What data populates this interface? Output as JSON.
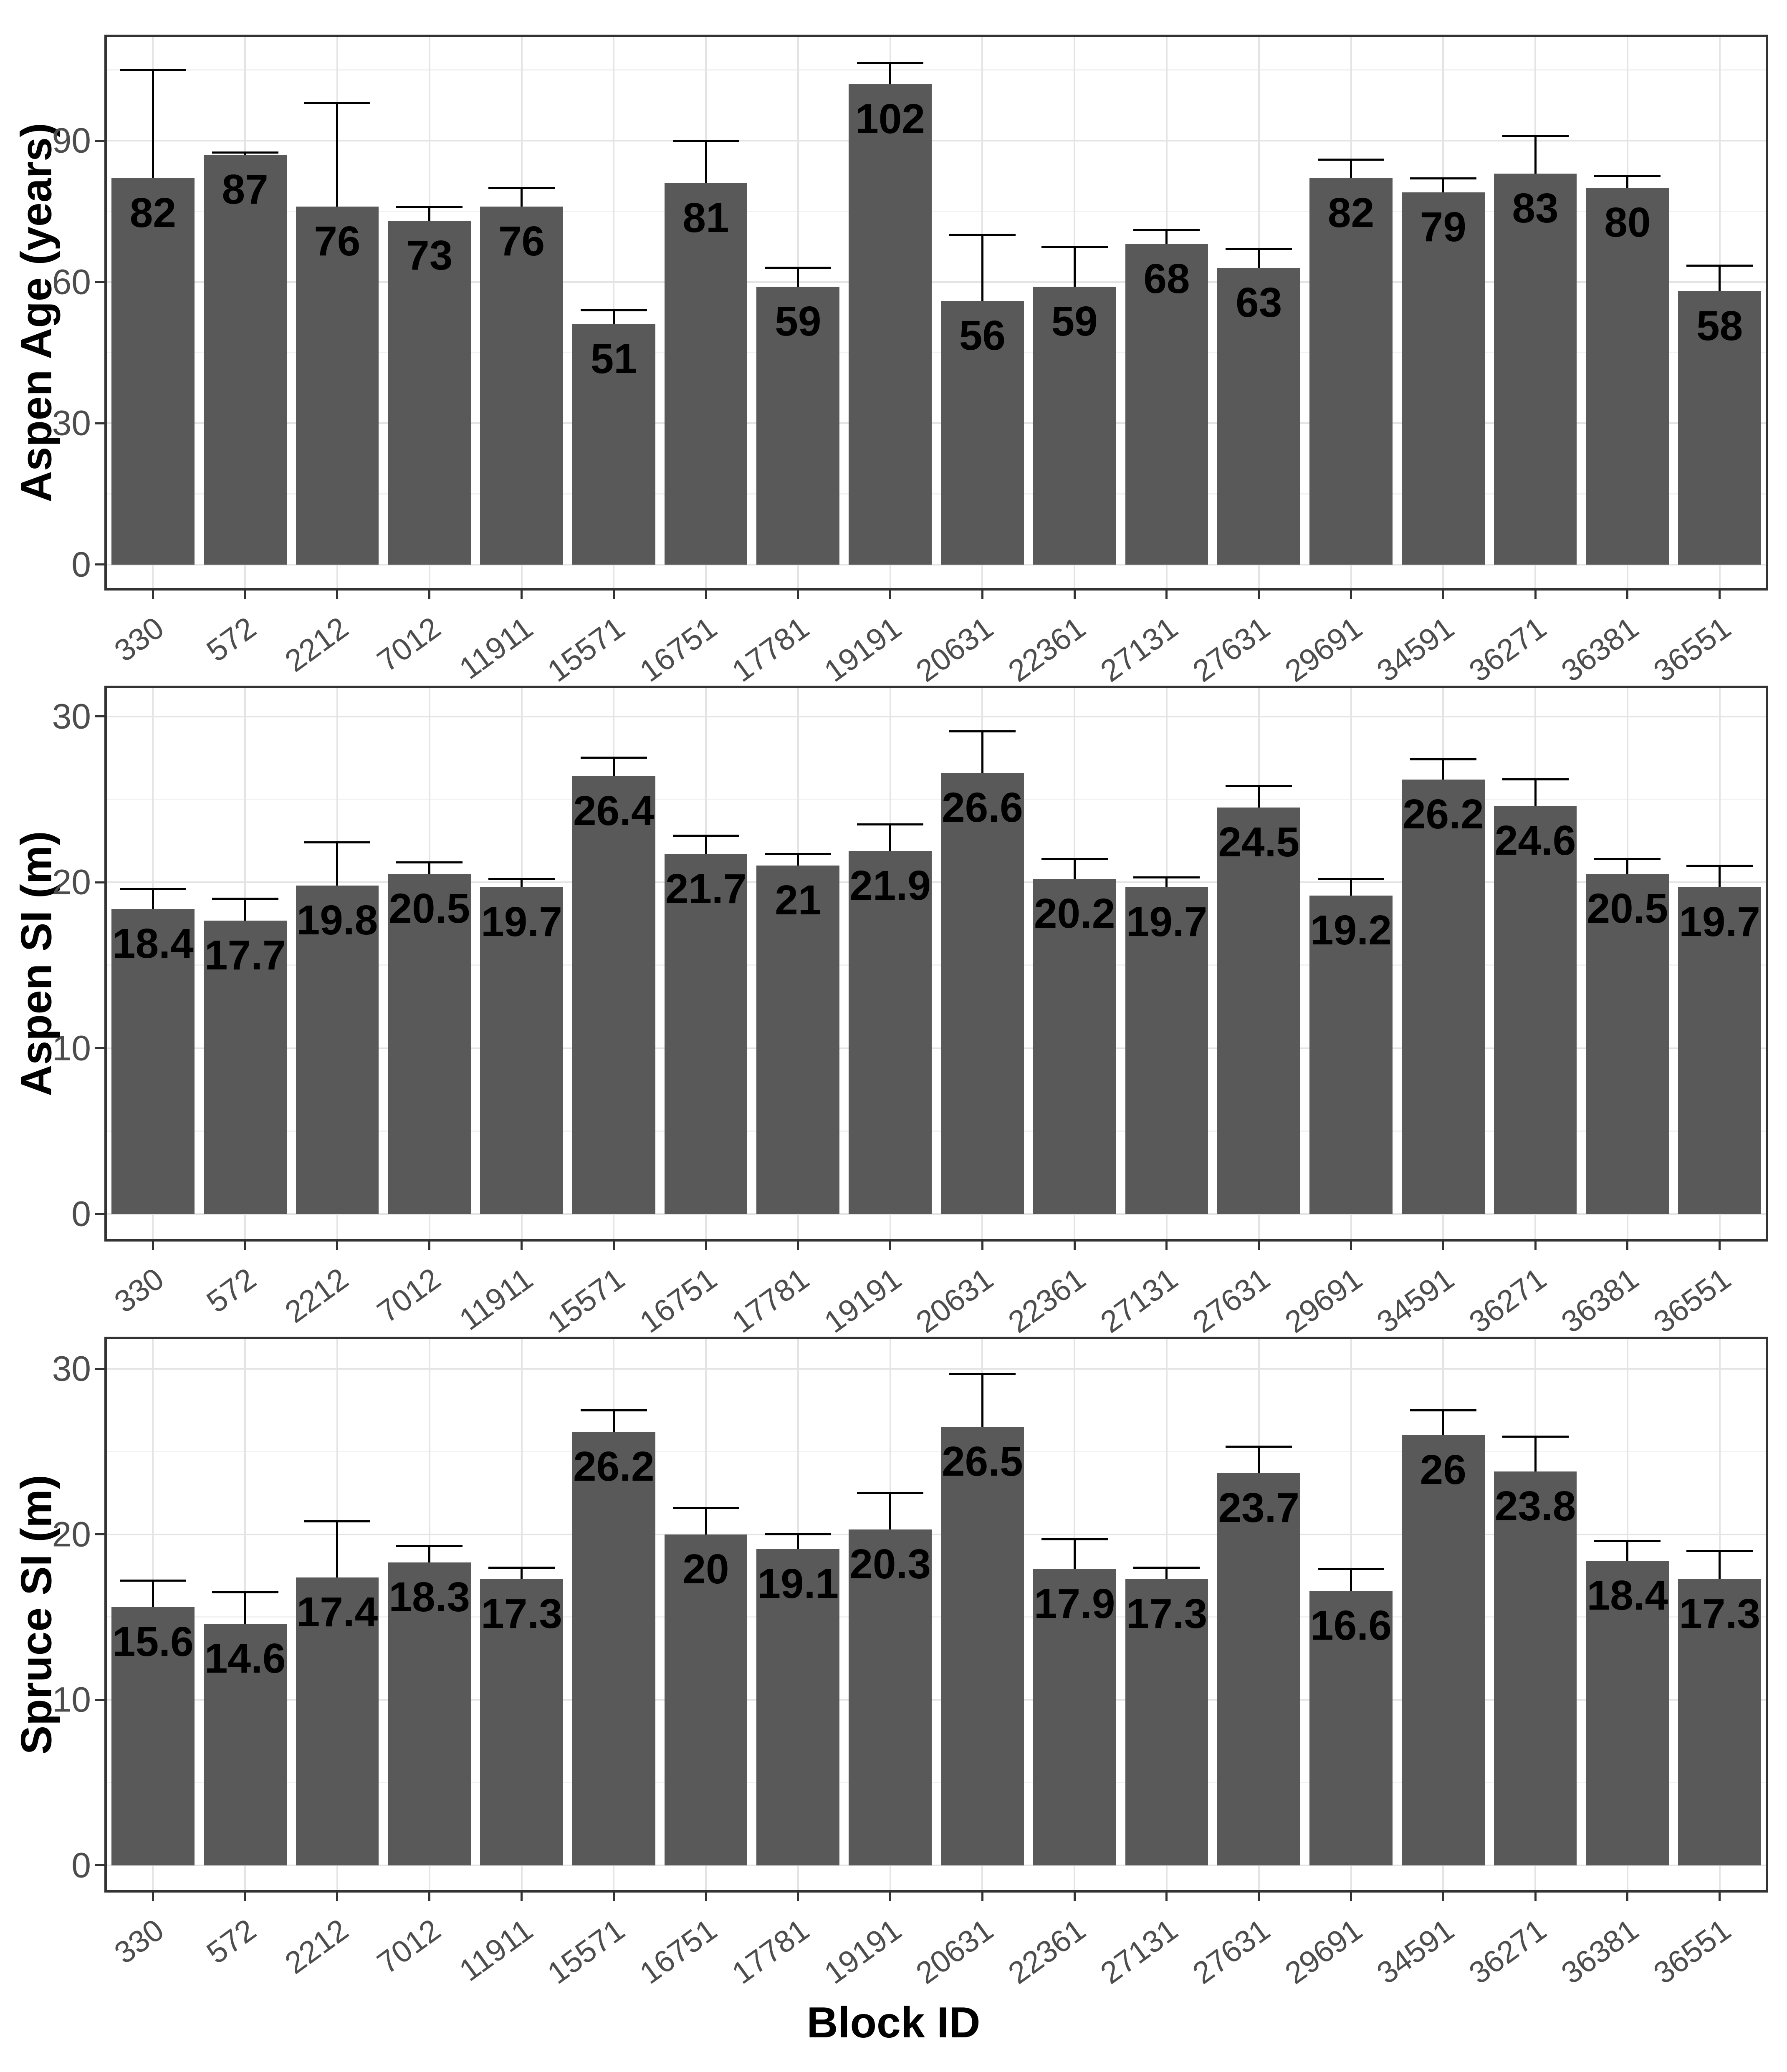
{
  "chart_data": {
    "type": "bar",
    "xlabel": "Block ID",
    "categories": [
      "330",
      "572",
      "2212",
      "7012",
      "11911",
      "15571",
      "16751",
      "17781",
      "19191",
      "20631",
      "22361",
      "27131",
      "27631",
      "29691",
      "34591",
      "36271",
      "36381",
      "36551"
    ],
    "colors": {
      "bar_fill": "#595959",
      "panel_border": "#333333",
      "grid_major": "#E4E4E4",
      "grid_minor": "#F2F2F2",
      "axis_text": "#4D4D4D",
      "error_bar": "#000000",
      "value_label": "#000000"
    },
    "layout": {
      "grid": "on",
      "legend": "none",
      "bar_width_frac": 0.9,
      "error_cap_frac": 0.8
    },
    "panels": [
      {
        "ylabel": "Aspen Age (years)",
        "yticks": [
          0,
          30,
          60,
          90
        ],
        "yminor": [
          15,
          45,
          75,
          105
        ],
        "ylim": [
          -5,
          112
        ],
        "values": [
          82,
          87,
          76,
          73,
          76,
          51,
          81,
          59,
          102,
          56,
          59,
          68,
          63,
          82,
          79,
          83,
          80,
          58
        ],
        "labels": [
          "82",
          "87",
          "76",
          "73",
          "76",
          "51",
          "81",
          "59",
          "102",
          "56",
          "59",
          "68",
          "63",
          "82",
          "79",
          "83",
          "80",
          "58"
        ],
        "error_top": [
          105,
          87.5,
          98,
          76,
          80,
          54,
          90,
          63,
          106.5,
          70,
          67.5,
          71,
          67,
          86,
          82,
          91,
          82.5,
          63.5
        ]
      },
      {
        "ylabel": "Aspen SI (m)",
        "yticks": [
          0,
          10,
          20,
          30
        ],
        "yminor": [
          5,
          15,
          25
        ],
        "ylim": [
          -1.5,
          31.7
        ],
        "values": [
          18.4,
          17.7,
          19.8,
          20.5,
          19.7,
          26.4,
          21.7,
          21,
          21.9,
          26.6,
          20.2,
          19.7,
          24.5,
          19.2,
          26.2,
          24.6,
          20.5,
          19.7
        ],
        "labels": [
          "18.4",
          "17.7",
          "19.8",
          "20.5",
          "19.7",
          "26.4",
          "21.7",
          "21",
          "21.9",
          "26.6",
          "20.2",
          "19.7",
          "24.5",
          "19.2",
          "26.2",
          "24.6",
          "20.5",
          "19.7"
        ],
        "error_top": [
          19.6,
          19,
          22.4,
          21.2,
          20.2,
          27.5,
          22.8,
          21.7,
          23.5,
          29.1,
          21.4,
          20.3,
          25.8,
          20.2,
          27.4,
          26.2,
          21.4,
          21
        ]
      },
      {
        "ylabel": "Spruce SI (m)",
        "yticks": [
          0,
          10,
          20,
          30
        ],
        "yminor": [
          5,
          15,
          25
        ],
        "ylim": [
          -1.5,
          31.8
        ],
        "values": [
          15.6,
          14.6,
          17.4,
          18.3,
          17.3,
          26.2,
          20,
          19.1,
          20.3,
          26.5,
          17.9,
          17.3,
          23.7,
          16.6,
          26,
          23.8,
          18.4,
          17.3
        ],
        "labels": [
          "15.6",
          "14.6",
          "17.4",
          "18.3",
          "17.3",
          "26.2",
          "20",
          "19.1",
          "20.3",
          "26.5",
          "17.9",
          "17.3",
          "23.7",
          "16.6",
          "26",
          "23.8",
          "18.4",
          "17.3"
        ],
        "error_top": [
          17.2,
          16.5,
          20.8,
          19.3,
          18,
          27.5,
          21.6,
          20,
          22.5,
          29.7,
          19.7,
          18,
          25.3,
          17.9,
          27.5,
          25.9,
          19.6,
          19
        ]
      }
    ]
  }
}
